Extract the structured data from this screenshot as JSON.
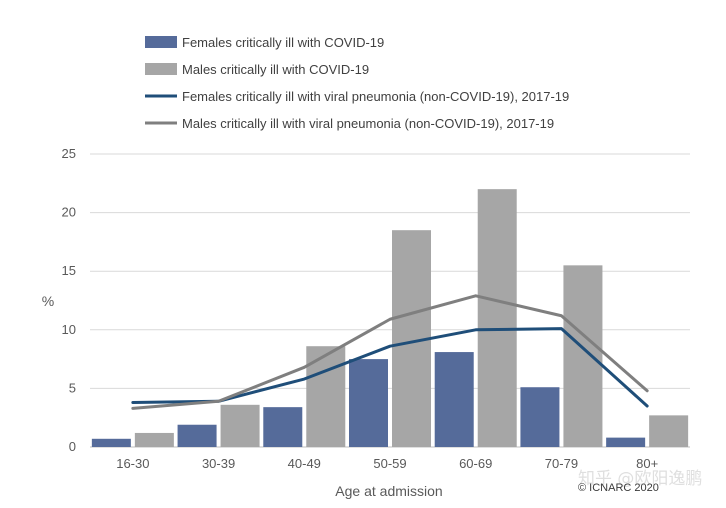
{
  "chart_data": {
    "type": "bar",
    "categories": [
      "16-30",
      "30-39",
      "40-49",
      "50-59",
      "60-69",
      "70-79",
      "80+"
    ],
    "series": [
      {
        "name": "Females critically ill with COVID-19",
        "kind": "bar",
        "color": "#556b9a",
        "values": [
          0.7,
          1.9,
          3.4,
          7.5,
          8.1,
          5.1,
          0.8
        ]
      },
      {
        "name": "Males critically ill with COVID-19",
        "kind": "bar",
        "color": "#a6a6a6",
        "values": [
          1.2,
          3.6,
          8.6,
          18.5,
          22.0,
          15.5,
          2.7
        ]
      },
      {
        "name": "Females critically ill with viral pneumonia (non-COVID-19), 2017-19",
        "kind": "line",
        "color": "#1f4e79",
        "values": [
          3.8,
          3.9,
          5.8,
          8.6,
          10.0,
          10.1,
          3.5
        ]
      },
      {
        "name": "Males critically ill with viral pneumonia (non-COVID-19), 2017-19",
        "kind": "line",
        "color": "#7f7f7f",
        "values": [
          3.3,
          3.9,
          6.8,
          10.9,
          12.9,
          11.2,
          4.8
        ]
      }
    ],
    "xlabel": "Age at admission",
    "ylabel": "%",
    "ylim": [
      0,
      25
    ],
    "yticks": [
      0,
      5,
      10,
      15,
      20,
      25
    ],
    "grid": true,
    "legend_position": "top-left"
  },
  "credit": "© ICNARC 2020",
  "watermark": "知乎 @欧阳逸鹏"
}
